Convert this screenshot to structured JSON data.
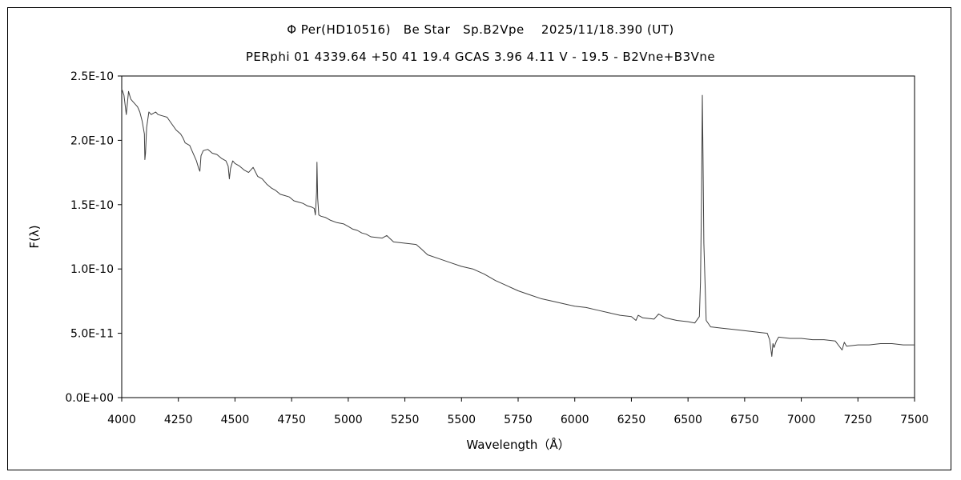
{
  "chart_data": {
    "type": "line",
    "title": "Φ Per(HD10516)   Be Star   Sp.B2Vpe    2025/11/18.390 (UT)",
    "subtitle": "PERphi 01 4339.64 +50 41 19.4 GCAS 3.96 4.11 V - 19.5 - B2Vne+B3Vne",
    "xlabel": "Wavelength（Å）",
    "ylabel": "F(λ)",
    "xlim": [
      4000,
      7500
    ],
    "ylim": [
      0,
      2.5e-10
    ],
    "xticks": [
      "4000",
      "4250",
      "4500",
      "4750",
      "5000",
      "5250",
      "5500",
      "5750",
      "6000",
      "6250",
      "6500",
      "6750",
      "7000",
      "7250",
      "7500"
    ],
    "yticks": [
      "0.0E+00",
      "5.0E-11",
      "1.0E-10",
      "1.5E-10",
      "2.0E-10",
      "2.5E-10"
    ],
    "line_color": "#404040",
    "grid": false,
    "series": [
      {
        "x": [
          4000,
          4010,
          4020,
          4030,
          4040,
          4050,
          4060,
          4070,
          4080,
          4090,
          4100,
          4102,
          4105,
          4110,
          4120,
          4130,
          4140,
          4150,
          4160,
          4180,
          4200,
          4220,
          4240,
          4260,
          4270,
          4280,
          4300,
          4310,
          4320,
          4330,
          4340,
          4345,
          4350,
          4360,
          4380,
          4400,
          4420,
          4440,
          4460,
          4470,
          4475,
          4480,
          4490,
          4500,
          4520,
          4540,
          4560,
          4580,
          4600,
          4620,
          4640,
          4660,
          4680,
          4700,
          4720,
          4740,
          4760,
          4780,
          4800,
          4820,
          4840,
          4850,
          4855,
          4860,
          4862,
          4865,
          4870,
          4880,
          4900,
          4920,
          4950,
          4980,
          5000,
          5020,
          5040,
          5060,
          5080,
          5100,
          5150,
          5170,
          5200,
          5250,
          5300,
          5320,
          5350,
          5400,
          5450,
          5500,
          5550,
          5600,
          5650,
          5700,
          5750,
          5800,
          5850,
          5900,
          5950,
          6000,
          6050,
          6100,
          6150,
          6200,
          6250,
          6270,
          6280,
          6300,
          6350,
          6370,
          6400,
          6450,
          6500,
          6530,
          6550,
          6555,
          6560,
          6563,
          6566,
          6570,
          6580,
          6600,
          6650,
          6700,
          6750,
          6800,
          6850,
          6860,
          6870,
          6875,
          6880,
          6890,
          6900,
          6950,
          7000,
          7050,
          7100,
          7150,
          7180,
          7190,
          7200,
          7250,
          7300,
          7350,
          7400,
          7450,
          7500
        ],
        "y": [
          2.4e-10,
          2.35e-10,
          2.2e-10,
          2.38e-10,
          2.32e-10,
          2.3e-10,
          2.28e-10,
          2.26e-10,
          2.22e-10,
          2.15e-10,
          2.05e-10,
          1.85e-10,
          1.9e-10,
          2.1e-10,
          2.22e-10,
          2.2e-10,
          2.21e-10,
          2.22e-10,
          2.2e-10,
          2.19e-10,
          2.18e-10,
          2.13e-10,
          2.08e-10,
          2.05e-10,
          2.02e-10,
          1.98e-10,
          1.96e-10,
          1.92e-10,
          1.88e-10,
          1.84e-10,
          1.78e-10,
          1.76e-10,
          1.88e-10,
          1.92e-10,
          1.93e-10,
          1.9e-10,
          1.89e-10,
          1.86e-10,
          1.84e-10,
          1.8e-10,
          1.7e-10,
          1.78e-10,
          1.84e-10,
          1.82e-10,
          1.8e-10,
          1.77e-10,
          1.75e-10,
          1.79e-10,
          1.72e-10,
          1.7e-10,
          1.66e-10,
          1.63e-10,
          1.61e-10,
          1.58e-10,
          1.57e-10,
          1.56e-10,
          1.53e-10,
          1.52e-10,
          1.51e-10,
          1.49e-10,
          1.48e-10,
          1.47e-10,
          1.42e-10,
          1.6e-10,
          1.83e-10,
          1.55e-10,
          1.42e-10,
          1.41e-10,
          1.4e-10,
          1.38e-10,
          1.36e-10,
          1.35e-10,
          1.33e-10,
          1.31e-10,
          1.3e-10,
          1.28e-10,
          1.27e-10,
          1.25e-10,
          1.24e-10,
          1.26e-10,
          1.21e-10,
          1.2e-10,
          1.19e-10,
          1.16e-10,
          1.11e-10,
          1.08e-10,
          1.05e-10,
          1.02e-10,
          1e-10,
          9.6e-11,
          9.1e-11,
          8.7e-11,
          8.3e-11,
          8e-11,
          7.7e-11,
          7.5e-11,
          7.3e-11,
          7.1e-11,
          7e-11,
          6.8e-11,
          6.6e-11,
          6.4e-11,
          6.3e-11,
          6e-11,
          6.4e-11,
          6.2e-11,
          6.1e-11,
          6.5e-11,
          6.2e-11,
          6e-11,
          5.9e-11,
          5.8e-11,
          6.3e-11,
          9e-11,
          1.6e-10,
          2.35e-10,
          1.9e-10,
          1.2e-10,
          6e-11,
          5.5e-11,
          5.4e-11,
          5.3e-11,
          5.2e-11,
          5.1e-11,
          5e-11,
          4.5e-11,
          3.2e-11,
          4.2e-11,
          3.9e-11,
          4.4e-11,
          4.7e-11,
          4.6e-11,
          4.6e-11,
          4.5e-11,
          4.5e-11,
          4.4e-11,
          3.7e-11,
          4.3e-11,
          4e-11,
          4.1e-11,
          4.1e-11,
          4.2e-11,
          4.2e-11,
          4.1e-11,
          4.1e-11
        ]
      }
    ]
  }
}
